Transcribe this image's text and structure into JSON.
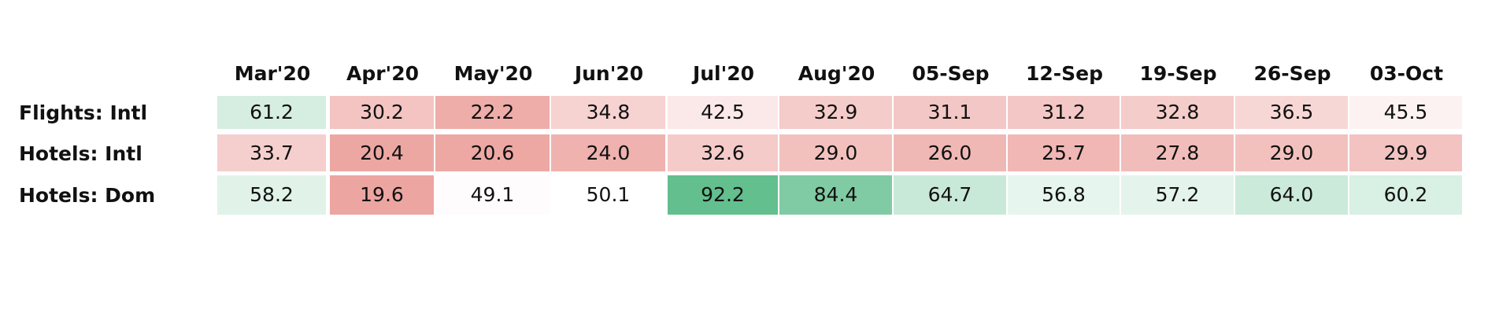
{
  "chart_data": {
    "type": "heatmap",
    "columns": [
      "Mar'20",
      "Apr'20",
      "May'20",
      "Jun'20",
      "Jul'20",
      "Aug'20",
      "05-Sep",
      "12-Sep",
      "19-Sep",
      "26-Sep",
      "03-Oct"
    ],
    "rows": [
      {
        "label": "Flights: Intl",
        "values": [
          61.2,
          30.2,
          22.2,
          34.8,
          42.5,
          32.9,
          31.1,
          31.2,
          32.8,
          36.5,
          45.5
        ]
      },
      {
        "label": "Hotels: Intl",
        "values": [
          33.7,
          20.4,
          20.6,
          24.0,
          32.6,
          29.0,
          26.0,
          25.7,
          27.8,
          29.0,
          29.9
        ]
      },
      {
        "label": "Hotels: Dom",
        "values": [
          58.2,
          19.6,
          49.1,
          50.1,
          92.2,
          84.4,
          64.7,
          56.8,
          57.2,
          64.0,
          60.2
        ]
      }
    ],
    "color_scale": {
      "low": "#eca5a1",
      "mid": "#ffffff",
      "high": "#63bf8e",
      "midpoint": 50
    }
  }
}
